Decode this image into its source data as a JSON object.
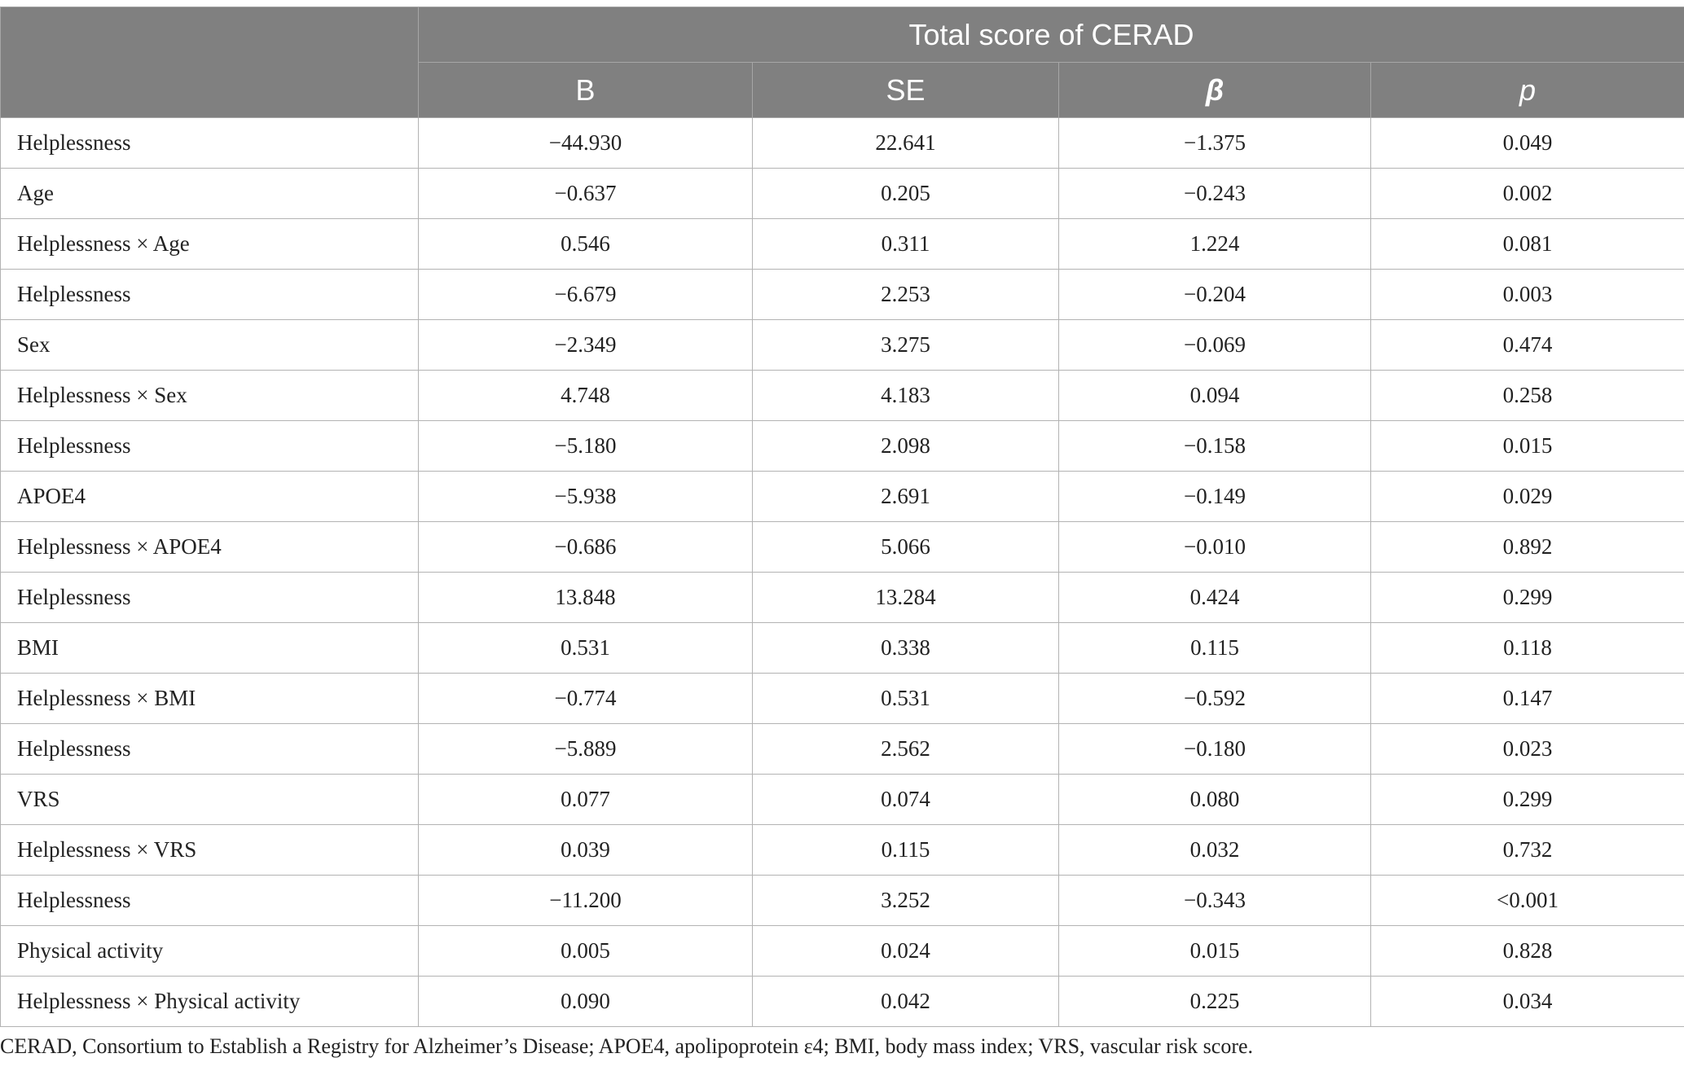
{
  "table": {
    "group_header": "Total score of CERAD",
    "columns": [
      "B",
      "SE",
      "β",
      "p"
    ],
    "rows": [
      {
        "label": "Helplessness",
        "values": [
          "−44.930",
          "22.641",
          "−1.375",
          "0.049"
        ]
      },
      {
        "label": "Age",
        "values": [
          "−0.637",
          "0.205",
          "−0.243",
          "0.002"
        ]
      },
      {
        "label": "Helplessness × Age",
        "values": [
          "0.546",
          "0.311",
          "1.224",
          "0.081"
        ]
      },
      {
        "label": "Helplessness",
        "values": [
          "−6.679",
          "2.253",
          "−0.204",
          "0.003"
        ]
      },
      {
        "label": "Sex",
        "values": [
          "−2.349",
          "3.275",
          "−0.069",
          "0.474"
        ]
      },
      {
        "label": "Helplessness × Sex",
        "values": [
          "4.748",
          "4.183",
          "0.094",
          "0.258"
        ]
      },
      {
        "label": "Helplessness",
        "values": [
          "−5.180",
          "2.098",
          "−0.158",
          "0.015"
        ]
      },
      {
        "label": "APOE4",
        "values": [
          "−5.938",
          "2.691",
          "−0.149",
          "0.029"
        ]
      },
      {
        "label": "Helplessness × APOE4",
        "values": [
          "−0.686",
          "5.066",
          "−0.010",
          "0.892"
        ]
      },
      {
        "label": "Helplessness",
        "values": [
          "13.848",
          "13.284",
          "0.424",
          "0.299"
        ]
      },
      {
        "label": "BMI",
        "values": [
          "0.531",
          "0.338",
          "0.115",
          "0.118"
        ]
      },
      {
        "label": "Helplessness × BMI",
        "values": [
          "−0.774",
          "0.531",
          "−0.592",
          "0.147"
        ]
      },
      {
        "label": "Helplessness",
        "values": [
          "−5.889",
          "2.562",
          "−0.180",
          "0.023"
        ]
      },
      {
        "label": "VRS",
        "values": [
          "0.077",
          "0.074",
          "0.080",
          "0.299"
        ]
      },
      {
        "label": "Helplessness × VRS",
        "values": [
          "0.039",
          "0.115",
          "0.032",
          "0.732"
        ]
      },
      {
        "label": "Helplessness",
        "values": [
          "−11.200",
          "3.252",
          "−0.343",
          "<0.001"
        ]
      },
      {
        "label": "Physical activity",
        "values": [
          "0.005",
          "0.024",
          "0.015",
          "0.828"
        ]
      },
      {
        "label": "Helplessness × Physical activity",
        "values": [
          "0.090",
          "0.042",
          "0.225",
          "0.034"
        ]
      }
    ]
  },
  "footnote": "CERAD, Consortium to Establish a Registry for Alzheimer’s Disease; APOE4, apolipoprotein ε4; BMI, body mass index; VRS, vascular risk score."
}
